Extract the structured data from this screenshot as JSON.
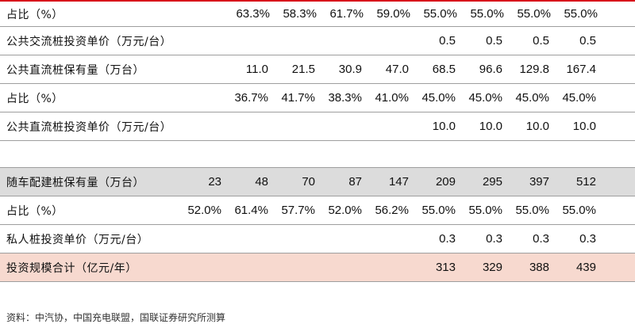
{
  "rows": [
    {
      "label": "占比（%）",
      "values": [
        "",
        "",
        "63.3%",
        "58.3%",
        "61.7%",
        "59.0%",
        "55.0%",
        "55.0%",
        "55.0%",
        "55.0%"
      ]
    },
    {
      "label": "公共交流桩投资单价（万元/台）",
      "values": [
        "",
        "",
        "",
        "",
        "",
        "",
        "0.5",
        "0.5",
        "0.5",
        "0.5"
      ]
    },
    {
      "label": "公共直流桩保有量（万台）",
      "values": [
        "",
        "",
        "11.0",
        "21.5",
        "30.9",
        "47.0",
        "68.5",
        "96.6",
        "129.8",
        "167.4"
      ]
    },
    {
      "label": "占比（%）",
      "values": [
        "",
        "",
        "36.7%",
        "41.7%",
        "38.3%",
        "41.0%",
        "45.0%",
        "45.0%",
        "45.0%",
        "45.0%"
      ]
    },
    {
      "label": "公共直流桩投资单价（万元/台）",
      "values": [
        "",
        "",
        "",
        "",
        "",
        "",
        "10.0",
        "10.0",
        "10.0",
        "10.0"
      ]
    },
    {
      "label": "",
      "values": [
        "",
        "",
        "",
        "",
        "",
        "",
        "",
        "",
        "",
        ""
      ]
    },
    {
      "label": "随车配建桩保有量（万台）",
      "values": [
        "",
        "23",
        "48",
        "70",
        "87",
        "147",
        "209",
        "295",
        "397",
        "512"
      ]
    },
    {
      "label": "占比（%）",
      "values": [
        "",
        "52.0%",
        "61.4%",
        "57.7%",
        "52.0%",
        "56.2%",
        "55.0%",
        "55.0%",
        "55.0%",
        "55.0%"
      ]
    },
    {
      "label": "私人桩投资单价（万元/台）",
      "values": [
        "",
        "",
        "",
        "",
        "",
        "",
        "0.3",
        "0.3",
        "0.3",
        "0.3"
      ]
    },
    {
      "label": "投资规模合计（亿元/年）",
      "values": [
        "",
        "",
        "",
        "",
        "",
        "",
        "313",
        "329",
        "388",
        "439"
      ]
    }
  ],
  "source_note": "资料：中汽协，中国充电联盟，国联证券研究所测算"
}
